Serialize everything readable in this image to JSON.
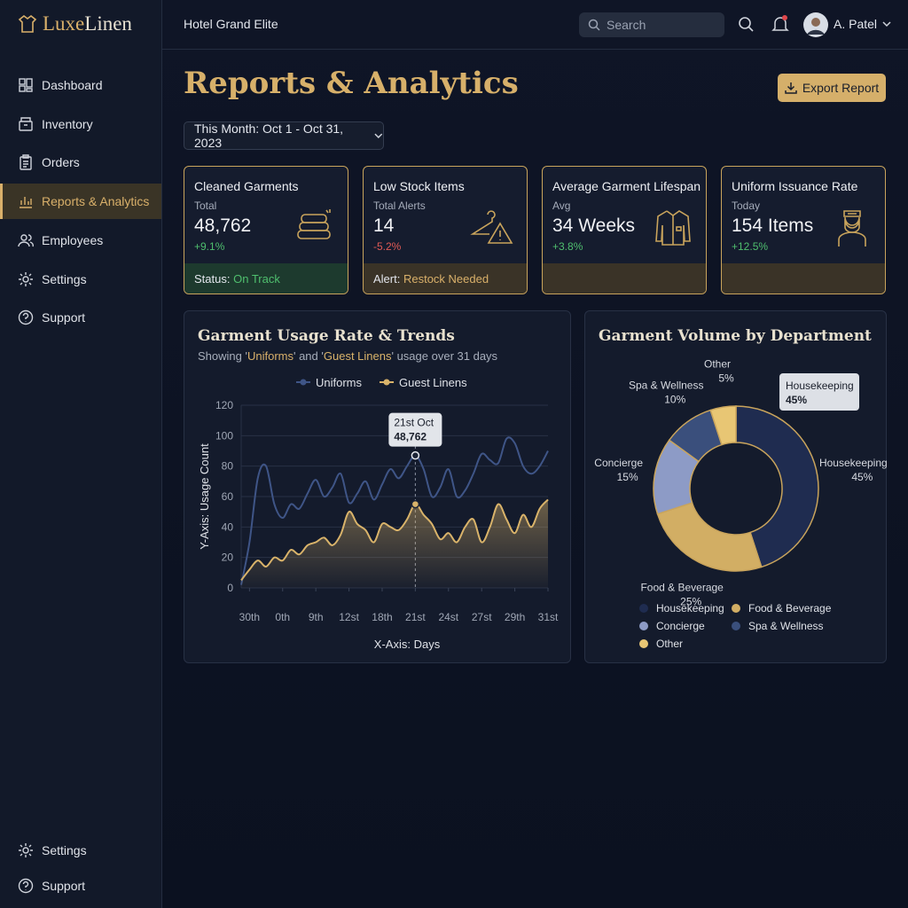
{
  "brand": {
    "first": "Luxe",
    "second": "Linen"
  },
  "nav": [
    "Dashboard",
    "Inventory",
    "Orders",
    "Reports & Analytics",
    "Employees",
    "Settings",
    "Support"
  ],
  "nav_active": 3,
  "nav_bottom": [
    "Settings",
    "Support"
  ],
  "header": {
    "hotel": "Hotel Grand Elite",
    "search": "Search",
    "user": "A. Patel"
  },
  "page": {
    "title": "Reports & Analytics",
    "export": "Export Report",
    "date_filter": "This Month: Oct 1 - Oct 31, 2023"
  },
  "cards": [
    {
      "title": "Cleaned Garments",
      "sub": "Total",
      "value": "48,762",
      "change": "+9.1%",
      "change_color": "#4fbf6e",
      "footer_label": "Status:",
      "footer_value": "On Track",
      "footer_color": "#4fbf6e"
    },
    {
      "title": "Low Stock Items",
      "sub": "Total Alerts",
      "value": "14",
      "change": "-5.2%",
      "change_color": "#e05a55",
      "footer_label": "Alert:",
      "footer_value": "Restock Needed",
      "footer_color": "#d9b06a"
    },
    {
      "title": "Average Garment Lifespan",
      "sub": "Avg",
      "value": "34 Weeks",
      "change": "+3.8%",
      "change_color": "#4fbf6e"
    },
    {
      "title": "Uniform Issuance Rate",
      "sub": "Today",
      "value": "154 Items",
      "change": "+12.5%",
      "change_color": "#4fbf6e"
    }
  ],
  "chart_data": [
    {
      "type": "line",
      "title": "Garment Usage Rate & Trends",
      "subtitle": [
        "Showing '",
        "Uniforms",
        "' and '",
        "Guest Linens",
        "' usage over 31 days"
      ],
      "x_label": "X-Axis: Days",
      "y_label": "Y-Axis: Usage Count",
      "x": [
        0,
        1,
        2,
        3,
        4,
        5,
        6,
        7,
        8,
        9,
        10,
        11,
        12,
        13,
        14,
        15,
        16,
        17,
        18,
        19,
        20,
        21,
        22,
        23,
        24,
        25,
        26,
        27,
        28,
        29,
        30,
        31,
        32,
        33,
        34,
        35,
        36,
        37
      ],
      "series": [
        {
          "name": "Uniforms",
          "color": "#3f5587",
          "values": [
            2,
            30,
            72,
            80,
            55,
            46,
            55,
            52,
            62,
            71,
            60,
            66,
            75,
            56,
            62,
            70,
            58,
            68,
            78,
            72,
            80,
            87,
            78,
            60,
            66,
            78,
            60,
            64,
            75,
            88,
            84,
            82,
            98,
            95,
            80,
            75,
            80,
            90
          ]
        },
        {
          "name": "Guest Linens",
          "color": "#d9b36a",
          "values": [
            5,
            12,
            18,
            14,
            20,
            18,
            25,
            22,
            28,
            30,
            33,
            28,
            35,
            50,
            42,
            38,
            30,
            42,
            40,
            38,
            45,
            55,
            48,
            42,
            32,
            36,
            30,
            40,
            45,
            30,
            40,
            55,
            45,
            36,
            48,
            40,
            52,
            58
          ]
        }
      ],
      "xlim": [
        0,
        37
      ],
      "xticks": [
        {
          "value": 1,
          "label": "30th"
        },
        {
          "value": 5,
          "label": "0th"
        },
        {
          "value": 9,
          "label": "9th"
        },
        {
          "value": 13,
          "label": "12st"
        },
        {
          "value": 17,
          "label": "18th"
        },
        {
          "value": 21,
          "label": "21st"
        },
        {
          "value": 25,
          "label": "24st"
        },
        {
          "value": 29,
          "label": "27st"
        },
        {
          "value": 33,
          "label": "29th"
        },
        {
          "value": 37,
          "label": "31st"
        }
      ],
      "ylim": [
        0,
        120
      ],
      "yticks": [
        0,
        20,
        40,
        60,
        80,
        100,
        120
      ],
      "grid": true,
      "highlight_x": 21,
      "tooltip": {
        "title": "21st Oct",
        "value": "48,762"
      }
    },
    {
      "type": "donut",
      "title": "Garment Volume by Department",
      "categories": [
        "Housekeeping",
        "Food & Beverage",
        "Concierge",
        "Spa & Wellness",
        "Other"
      ],
      "values": [
        45,
        25,
        15,
        10,
        5
      ],
      "value_labels": [
        "45%",
        "25%",
        "15%",
        "10%",
        "5%"
      ],
      "colors": [
        "#1f2c50",
        "#d2ae64",
        "#8d9bc6",
        "#3a4f7c",
        "#e8c674"
      ]
    }
  ]
}
